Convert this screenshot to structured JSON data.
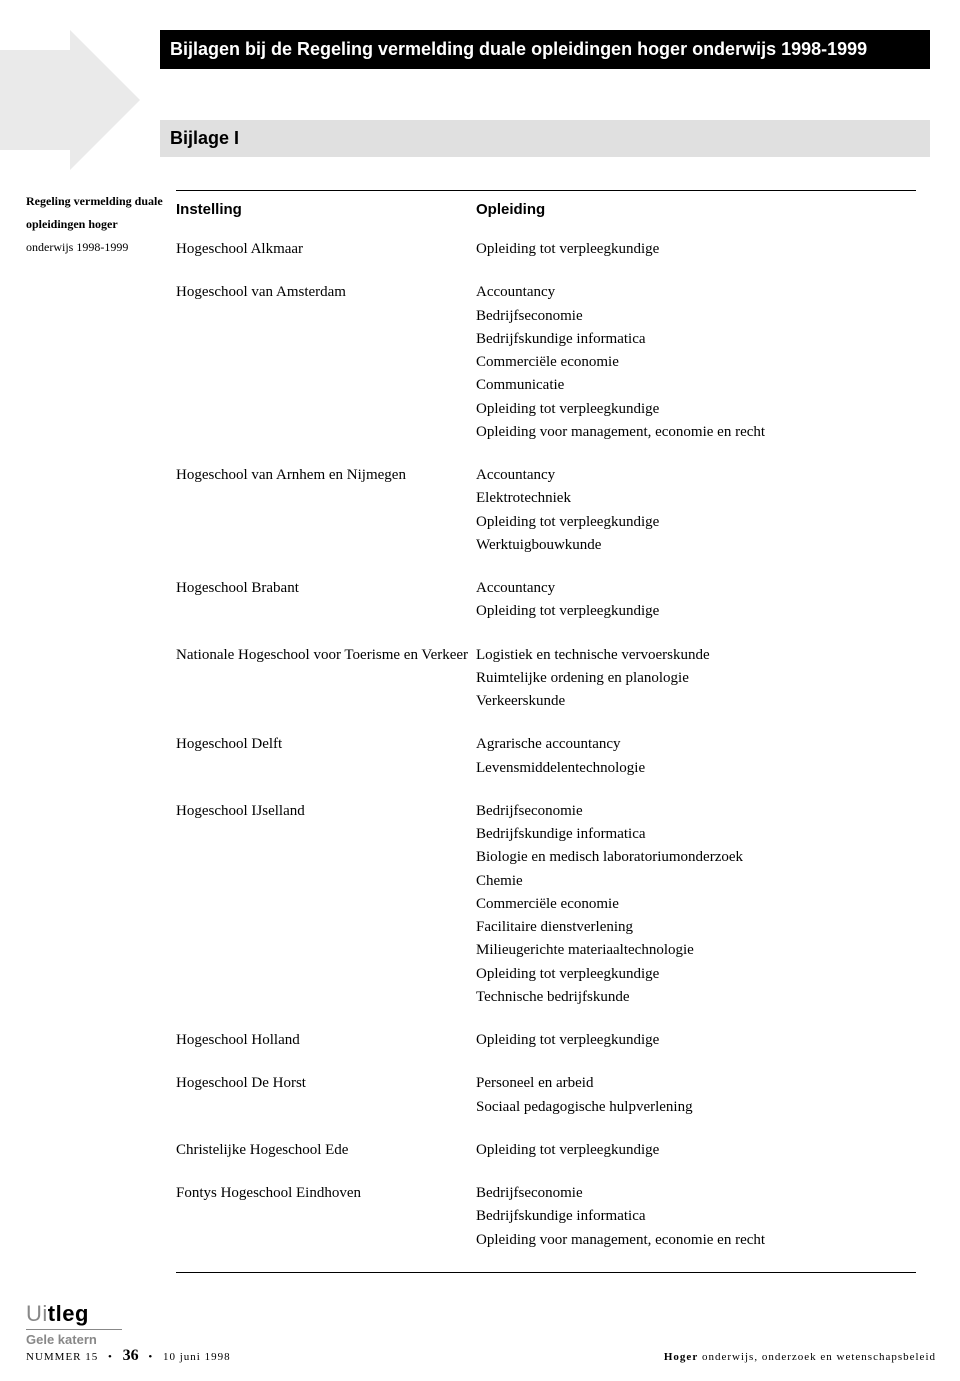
{
  "colors": {
    "page_bg": "#ffffff",
    "title_bg": "#000000",
    "title_text": "#ffffff",
    "subtitle_bg": "#e0e0e0",
    "subtitle_text": "#000000",
    "arrow_fill": "#eaeaea",
    "rule": "#000000",
    "logo_light": "#888888",
    "logo_dark": "#000000"
  },
  "title": "Bijlagen bij de Regeling vermelding duale opleidingen hoger onderwijs 1998-1999",
  "subtitle": "Bijlage I",
  "sidebar": {
    "line1_bold": "Regeling vermelding duale",
    "line2_bold": "opleidingen hoger",
    "line3": "onderwijs 1998-1999"
  },
  "table": {
    "header_left": "Instelling",
    "header_right": "Opleiding",
    "rows": [
      {
        "instelling": "Hogeschool Alkmaar",
        "opleidingen": [
          "Opleiding tot verpleegkundige"
        ]
      },
      {
        "instelling": "Hogeschool van Amsterdam",
        "opleidingen": [
          "Accountancy",
          "Bedrijfseconomie",
          "Bedrijfskundige informatica",
          "Commerciële economie",
          "Communicatie",
          "Opleiding tot verpleegkundige",
          "Opleiding voor management, economie en recht"
        ]
      },
      {
        "instelling": "Hogeschool van Arnhem en Nijmegen",
        "opleidingen": [
          "Accountancy",
          "Elektrotechniek",
          "Opleiding tot verpleegkundige",
          "Werktuigbouwkunde"
        ]
      },
      {
        "instelling": "Hogeschool Brabant",
        "opleidingen": [
          "Accountancy",
          "Opleiding tot verpleegkundige"
        ]
      },
      {
        "instelling": "Nationale Hogeschool voor Toerisme en Verkeer",
        "opleidingen": [
          "Logistiek en technische vervoerskunde",
          "Ruimtelijke ordening en planologie",
          "Verkeerskunde"
        ]
      },
      {
        "instelling": "Hogeschool Delft",
        "opleidingen": [
          "Agrarische accountancy",
          "Levensmiddelentechnologie"
        ]
      },
      {
        "instelling": "Hogeschool IJselland",
        "opleidingen": [
          "Bedrijfseconomie",
          "Bedrijfskundige informatica",
          "Biologie en medisch laboratoriumonderzoek",
          "Chemie",
          "Commerciële economie",
          "Facilitaire dienstverlening",
          "Milieugerichte materiaaltechnologie",
          "Opleiding tot verpleegkundige",
          "Technische bedrijfskunde"
        ]
      },
      {
        "instelling": "Hogeschool Holland",
        "opleidingen": [
          "Opleiding tot verpleegkundige"
        ]
      },
      {
        "instelling": "Hogeschool De Horst",
        "opleidingen": [
          "Personeel en arbeid",
          "Sociaal pedagogische hulpverlening"
        ]
      },
      {
        "instelling": "Christelijke Hogeschool Ede",
        "opleidingen": [
          "Opleiding tot verpleegkundige"
        ]
      },
      {
        "instelling": "Fontys Hogeschool Eindhoven",
        "opleidingen": [
          "Bedrijfseconomie",
          "Bedrijfskundige informatica",
          "Opleiding voor management, economie en recht"
        ]
      }
    ]
  },
  "footer": {
    "logo_u": "U",
    "logo_i": "i",
    "logo_t": "t",
    "logo_leg": "leg",
    "gele_katern": "Gele katern",
    "nummer_label": "NUMMER 15",
    "page_number": "36",
    "date": "10 juni 1998",
    "right_bold": "Hoger",
    "right_rest": " onderwijs, onderzoek en wetenschapsbeleid"
  }
}
